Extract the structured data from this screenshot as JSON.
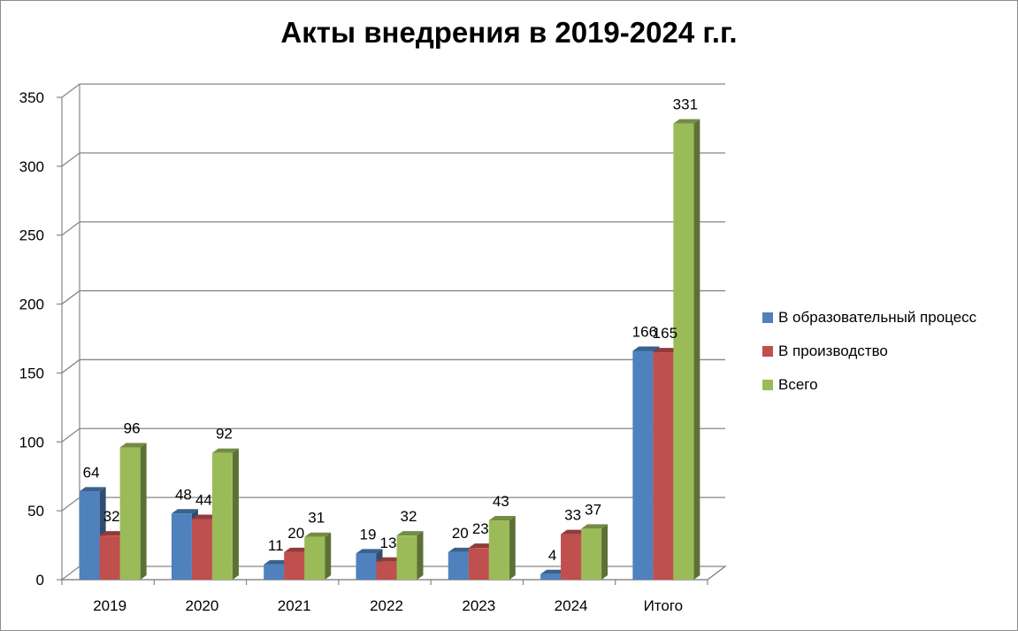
{
  "chart_data": {
    "type": "bar",
    "style": "3d-clustered-column",
    "title": "Акты внедрения в 2019-2024 г.г.",
    "xlabel": "",
    "ylabel": "",
    "categories": [
      "2019",
      "2020",
      "2021",
      "2022",
      "2023",
      "2024",
      "Итого"
    ],
    "ylim": [
      0,
      350
    ],
    "yticks": [
      "0",
      "50",
      "100",
      "150",
      "200",
      "250",
      "300",
      "350"
    ],
    "grid": true,
    "legend_position": "right",
    "series": [
      {
        "name": "В образовательный процесс",
        "color": "#4f81bd",
        "values": [
          64,
          48,
          11,
          19,
          20,
          4,
          166
        ]
      },
      {
        "name": "В производство",
        "color": "#c0504d",
        "values": [
          32,
          44,
          20,
          13,
          23,
          33,
          165
        ]
      },
      {
        "name": "Всего",
        "color": "#9bbb59",
        "values": [
          96,
          92,
          31,
          32,
          43,
          37,
          331
        ]
      }
    ]
  }
}
